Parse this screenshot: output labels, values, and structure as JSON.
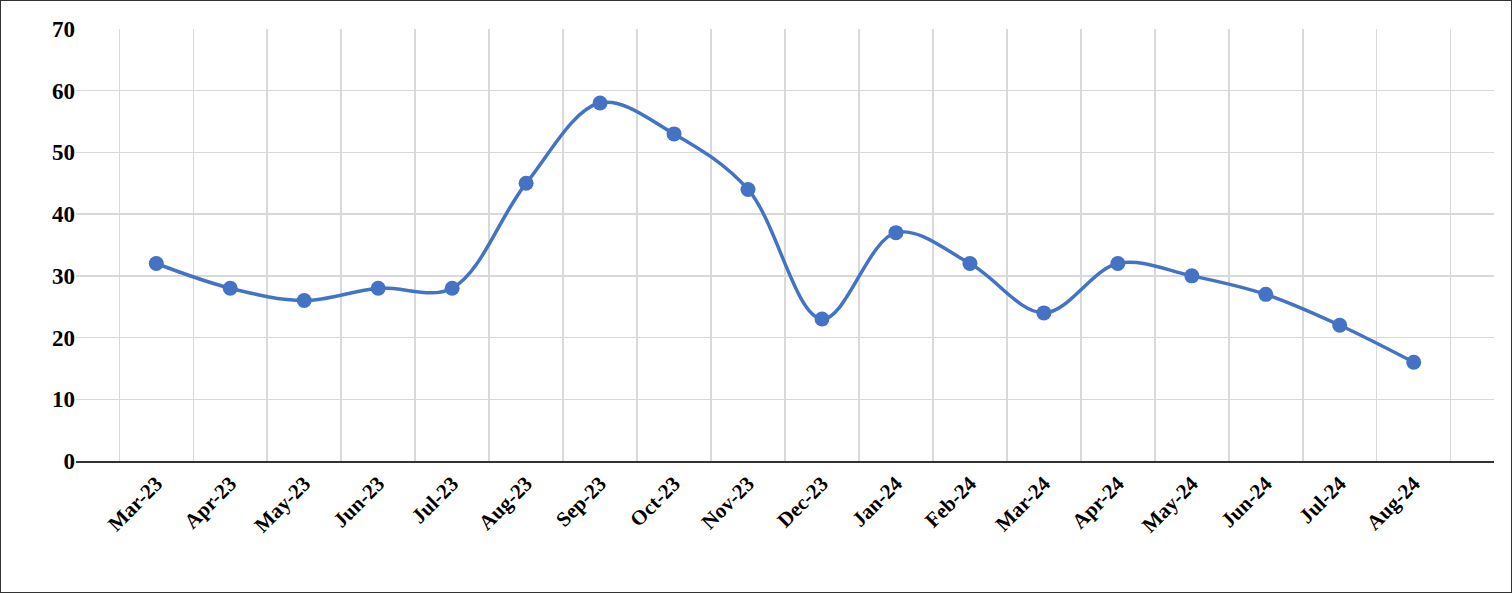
{
  "chart_data": {
    "type": "line",
    "categories": [
      "Mar-23",
      "Apr-23",
      "May-23",
      "Jun-23",
      "Jul-23",
      "Aug-23",
      "Sep-23",
      "Oct-23",
      "Nov-23",
      "Dec-23",
      "Jan-24",
      "Feb-24",
      "Mar-24",
      "Apr-24",
      "May-24",
      "Jun-24",
      "Jul-24",
      "Aug-24"
    ],
    "values": [
      32,
      28,
      26,
      28,
      28,
      45,
      58,
      53,
      44,
      23,
      37,
      32,
      24,
      32,
      30,
      27,
      22,
      16
    ],
    "color": "#4472c4",
    "marker": "circle",
    "line_style": "smooth",
    "ylim": [
      0,
      70
    ],
    "yticks": [
      0,
      10,
      20,
      30,
      40,
      50,
      60,
      70
    ],
    "grid": true
  }
}
